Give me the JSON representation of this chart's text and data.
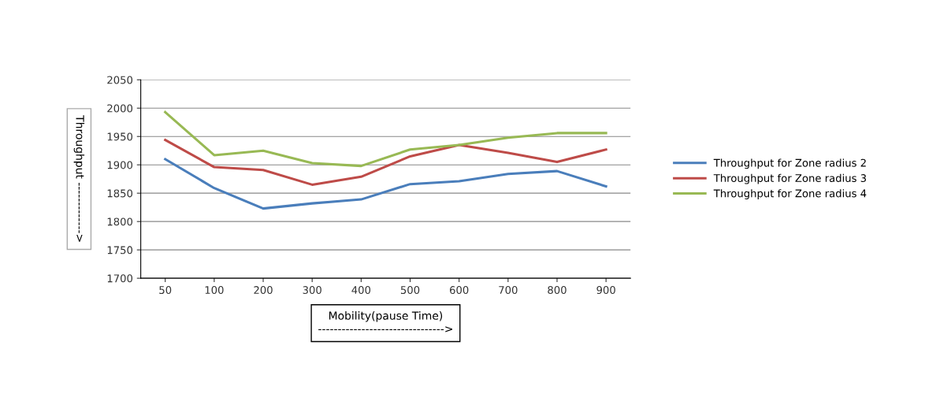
{
  "chart_data": {
    "type": "line",
    "xlabel": "Mobility(pause Time)\n-------------------------------->",
    "ylabel": "Throughput ------------->",
    "categories": [
      "50",
      "100",
      "200",
      "300",
      "400",
      "500",
      "600",
      "700",
      "800",
      "900"
    ],
    "series": [
      {
        "name": "Throughput for Zone radius 2",
        "color": "#4a7ebb",
        "values": [
          1910,
          1859,
          1823,
          1832,
          1839,
          1866,
          1871,
          1884,
          1889,
          1862
        ]
      },
      {
        "name": "Throughput for Zone radius 3",
        "color": "#be4b48",
        "values": [
          1944,
          1896,
          1891,
          1865,
          1879,
          1915,
          1935,
          1921,
          1905,
          1927
        ]
      },
      {
        "name": "Throughput for Zone radius 4",
        "color": "#98b954",
        "values": [
          1993,
          1917,
          1925,
          1903,
          1898,
          1927,
          1935,
          1948,
          1956,
          1956
        ]
      }
    ],
    "ylim": [
      1700,
      2050
    ],
    "yticks": [
      1700,
      1750,
      1800,
      1850,
      1900,
      1950,
      2000,
      2050
    ],
    "grid": "y",
    "legend": "right",
    "marker": "none",
    "line_style": "solid"
  }
}
